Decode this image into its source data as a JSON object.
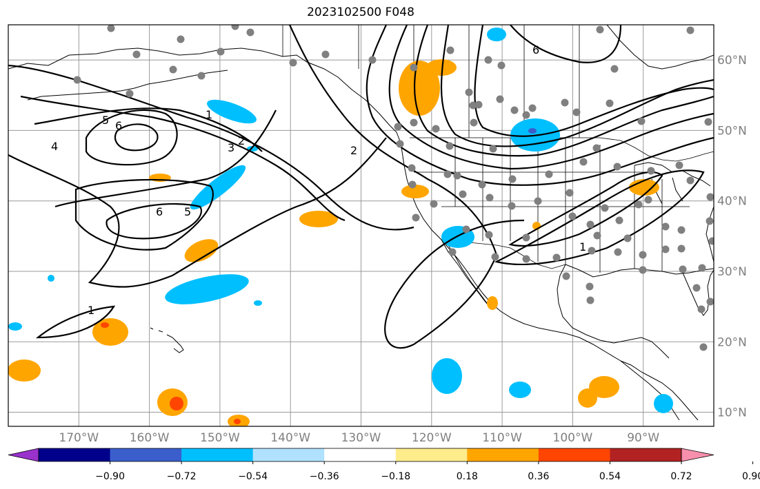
{
  "title": "2023102500 F048",
  "map": {
    "projection": "PlateCarree",
    "lon_range": [
      -180,
      -80
    ],
    "lat_range": [
      8,
      65
    ],
    "longitude_ticks": [
      {
        "lon": -170,
        "label": "170°W"
      },
      {
        "lon": -160,
        "label": "160°W"
      },
      {
        "lon": -150,
        "label": "150°W"
      },
      {
        "lon": -140,
        "label": "140°W"
      },
      {
        "lon": -130,
        "label": "130°W"
      },
      {
        "lon": -120,
        "label": "120°W"
      },
      {
        "lon": -110,
        "label": "110°W"
      },
      {
        "lon": -100,
        "label": "100°W"
      },
      {
        "lon": -90,
        "label": "90°W"
      }
    ],
    "latitude_ticks": [
      {
        "lat": 60,
        "label": "60°N"
      },
      {
        "lat": 50,
        "label": "50°N"
      },
      {
        "lat": 40,
        "label": "40°N"
      },
      {
        "lat": 30,
        "label": "30°N"
      },
      {
        "lat": 20,
        "label": "20°N"
      },
      {
        "lat": 10,
        "label": "10°N"
      }
    ],
    "contour_labels": [
      "1",
      "2",
      "3",
      "5",
      "6",
      "4",
      "6",
      "5",
      "1",
      "2",
      "1",
      "6"
    ],
    "station_color": "#808080",
    "ocean_color": "#ffffff",
    "coastline_color": "#000000",
    "grid_color": "#999999"
  },
  "colorbar": {
    "colors": [
      "#9932cc",
      "#00008b",
      "#3a5fcd",
      "#00bfff",
      "#b0e2ff",
      "#ffffff",
      "#ffec8b",
      "#ffa500",
      "#ff4500",
      "#b22222",
      "#f88fac"
    ],
    "tick_labels": [
      "−0.90",
      "−0.72",
      "−0.54",
      "−0.36",
      "−0.18",
      "0.18",
      "0.36",
      "0.54",
      "0.72",
      "0.90"
    ]
  }
}
